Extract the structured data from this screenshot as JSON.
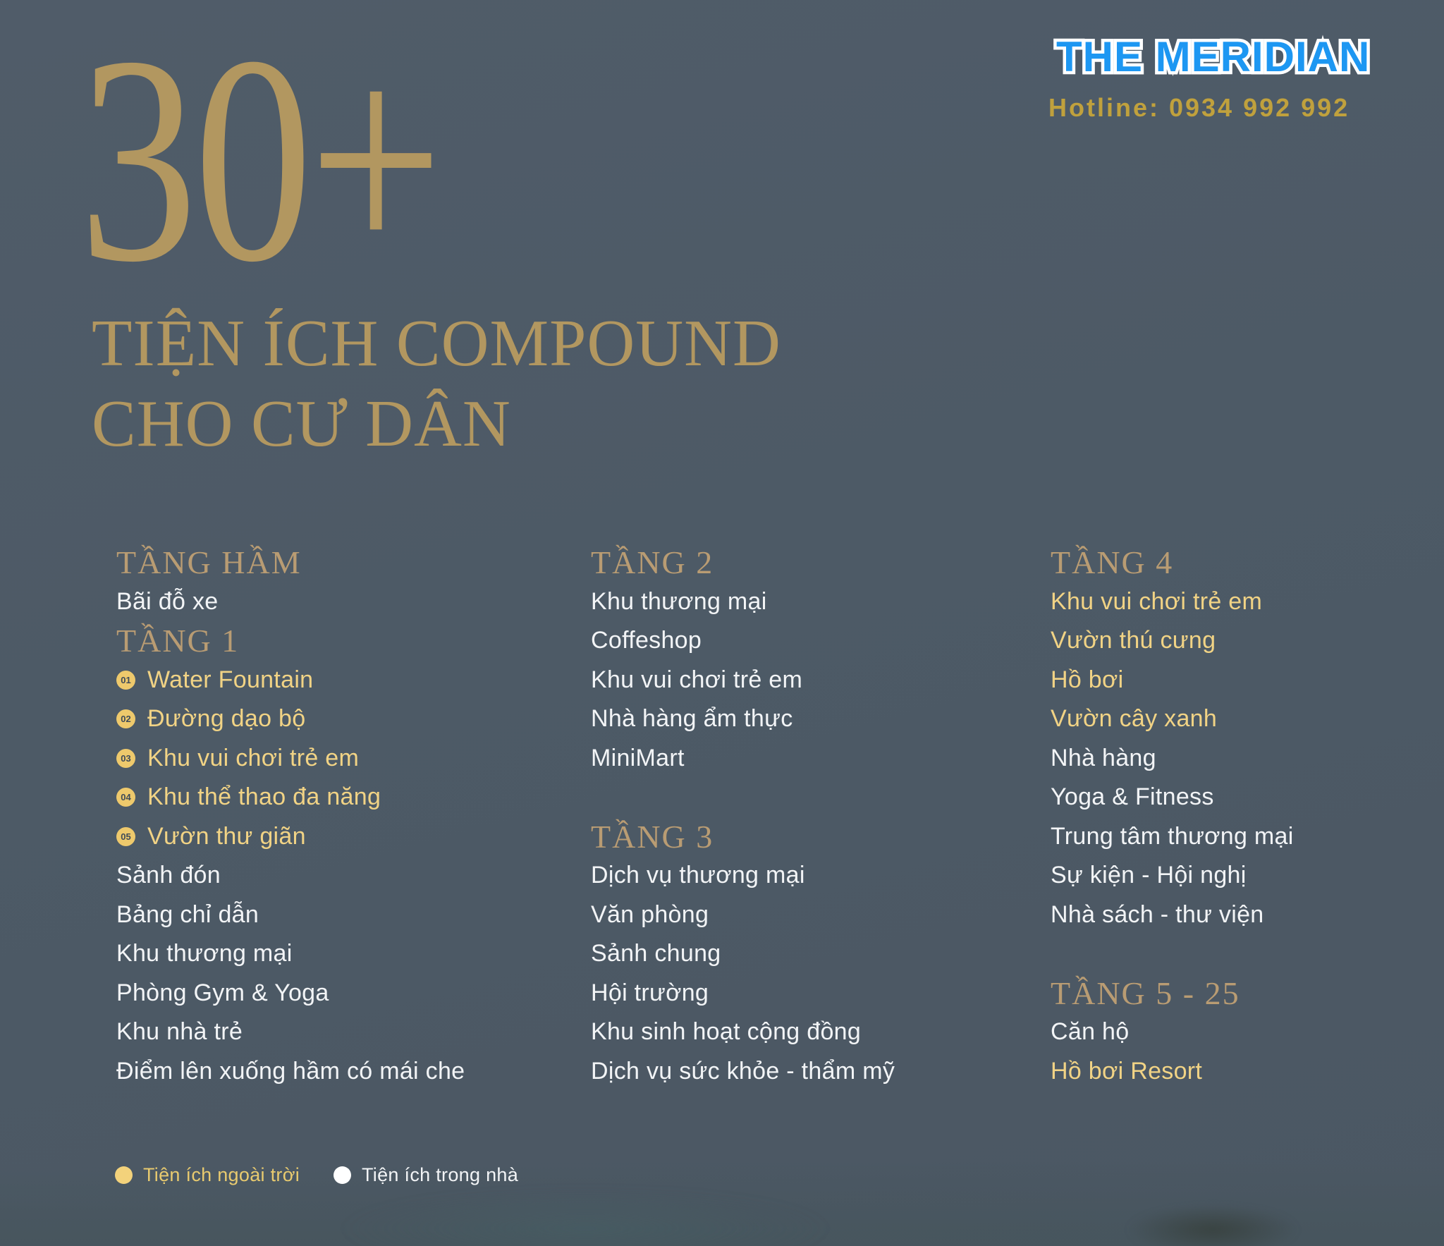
{
  "brand": {
    "name": "THE MERIDIAN",
    "hotline": "Hotline: 0934 992 992",
    "logo_color": "#1d97f2",
    "hotline_color": "#c0a13d"
  },
  "headline": {
    "counter": "30+",
    "line1": "TIỆN ÍCH COMPOUND",
    "line2": "CHO CƯ DÂN",
    "color": "#b29760"
  },
  "colors": {
    "background": "#4d5a66",
    "floor_heading": "#b99c73",
    "outdoor_gold": "#f1d385",
    "indoor_white": "#f2f4f6",
    "badge_fill": "#eec96c",
    "badge_number": "#3f4b58"
  },
  "columns": [
    {
      "sections": [
        {
          "title": "TẦNG HẦM",
          "items": [
            {
              "text": "Bãi đỗ xe",
              "type": "indoor"
            }
          ]
        },
        {
          "title": "TẦNG 1",
          "items": [
            {
              "badge": "01",
              "text": "Water Fountain",
              "type": "outdoor"
            },
            {
              "badge": "02",
              "text": "Đường dạo bộ",
              "type": "outdoor"
            },
            {
              "badge": "03",
              "text": "Khu vui chơi trẻ em",
              "type": "outdoor"
            },
            {
              "badge": "04",
              "text": "Khu thể thao đa năng",
              "type": "outdoor"
            },
            {
              "badge": "05",
              "text": "Vườn thư giãn",
              "type": "outdoor"
            },
            {
              "text": "Sảnh đón",
              "type": "indoor"
            },
            {
              "text": "Bảng chỉ dẫn",
              "type": "indoor"
            },
            {
              "text": "Khu thương mại",
              "type": "indoor"
            },
            {
              "text": "Phòng Gym & Yoga",
              "type": "indoor"
            },
            {
              "text": "Khu nhà trẻ",
              "type": "indoor"
            },
            {
              "text": "Điểm lên xuống hầm có mái che",
              "type": "indoor"
            }
          ]
        }
      ]
    },
    {
      "sections": [
        {
          "title": "TẦNG 2",
          "items": [
            {
              "text": "Khu thương mại",
              "type": "indoor"
            },
            {
              "text": "Coffeshop",
              "type": "indoor"
            },
            {
              "text": "Khu vui chơi trẻ em",
              "type": "indoor"
            },
            {
              "text": "Nhà hàng ẩm thực",
              "type": "indoor"
            },
            {
              "text": "MiniMart",
              "type": "indoor"
            }
          ]
        },
        {
          "title": "TẦNG 3",
          "items": [
            {
              "text": "Dịch vụ thương mại",
              "type": "indoor"
            },
            {
              "text": "Văn phòng",
              "type": "indoor"
            },
            {
              "text": "Sảnh chung",
              "type": "indoor"
            },
            {
              "text": "Hội trường",
              "type": "indoor"
            },
            {
              "text": "Khu sinh hoạt cộng đồng",
              "type": "indoor"
            },
            {
              "text": "Dịch vụ sức khỏe - thẩm mỹ",
              "type": "indoor"
            }
          ]
        }
      ]
    },
    {
      "sections": [
        {
          "title": "TẦNG 4",
          "items": [
            {
              "text": "Khu vui chơi trẻ em",
              "type": "outdoor"
            },
            {
              "text": "Vườn thú cưng",
              "type": "outdoor"
            },
            {
              "text": "Hồ bơi",
              "type": "outdoor"
            },
            {
              "text": "Vườn cây xanh",
              "type": "outdoor"
            },
            {
              "text": "Nhà hàng",
              "type": "indoor"
            },
            {
              "text": "Yoga & Fitness",
              "type": "indoor"
            },
            {
              "text": "Trung tâm thương mại",
              "type": "indoor"
            },
            {
              "text": "Sự kiện - Hội nghị",
              "type": "indoor"
            },
            {
              "text": "Nhà sách - thư viện",
              "type": "indoor"
            }
          ]
        },
        {
          "title": "TẦNG 5 - 25",
          "items": [
            {
              "text": "Căn hộ",
              "type": "indoor"
            },
            {
              "text": "Hồ bơi Resort",
              "type": "outdoor"
            }
          ]
        }
      ]
    }
  ],
  "legend": [
    {
      "label": "Tiện ích ngoài trời",
      "type": "outdoor",
      "dot_color": "#f3d27b"
    },
    {
      "label": "Tiện ích trong nhà",
      "type": "indoor",
      "dot_color": "#ffffff"
    }
  ]
}
